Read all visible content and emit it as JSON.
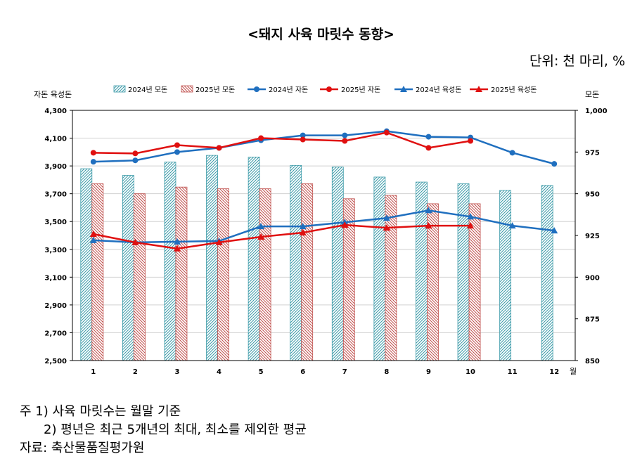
{
  "title": "<돼지 사육 마릿수 동향>",
  "unit": "단위: 천 마리, %",
  "notes": {
    "note1": "주  1)  사육  마릿수는  월말  기준",
    "note2": "2)  평년은  최근  5개년의  최대,  최소를  제외한  평균",
    "source": "자료:  축산물품질평가원"
  },
  "colors": {
    "y2024_bar": "#3a9aa8",
    "y2025_bar": "#c0504d",
    "y2024_line": "#1f6fbf",
    "y2025_line": "#e01010"
  },
  "chart_data": {
    "type": "bar",
    "categories": [
      "1",
      "2",
      "3",
      "4",
      "5",
      "6",
      "7",
      "8",
      "9",
      "10",
      "11",
      "12"
    ],
    "x_unit": "월",
    "left_axis": {
      "label": "자돈 육성돈",
      "range": [
        2500,
        4300
      ],
      "ticks": [
        "2,500",
        "2,700",
        "2,900",
        "3,100",
        "3,300",
        "3,500",
        "3,700",
        "3,900",
        "4,100",
        "4,300"
      ]
    },
    "right_axis": {
      "label": "모돈",
      "range": [
        850,
        1000
      ],
      "ticks": [
        "850",
        "875",
        "900",
        "925",
        "950",
        "975",
        "1,000"
      ]
    },
    "series": [
      {
        "name": "2024년 모돈",
        "kind": "bar",
        "axis": "right",
        "values": [
          965,
          961,
          969,
          973,
          972,
          967,
          966,
          960,
          957,
          956,
          952,
          955
        ]
      },
      {
        "name": "2025년 모돈",
        "kind": "bar",
        "axis": "right",
        "values": [
          956,
          950,
          954,
          953,
          953,
          956,
          947,
          949,
          944,
          944,
          null,
          null
        ]
      },
      {
        "name": "2024년 자돈",
        "kind": "line",
        "axis": "left",
        "values": [
          3930,
          3940,
          4000,
          4030,
          4085,
          4120,
          4120,
          4150,
          4110,
          4105,
          3995,
          3915
        ]
      },
      {
        "name": "2025년 자돈",
        "kind": "line",
        "axis": "left",
        "values": [
          3995,
          3990,
          4050,
          4030,
          4100,
          4090,
          4080,
          4140,
          4030,
          4080,
          null,
          null
        ]
      },
      {
        "name": "2024년 육성돈",
        "kind": "line",
        "axis": "left",
        "values": [
          3365,
          3350,
          3355,
          3360,
          3465,
          3465,
          3495,
          3525,
          3580,
          3535,
          3470,
          3435
        ]
      },
      {
        "name": "2025년 육성돈",
        "kind": "line",
        "axis": "left",
        "values": [
          3410,
          3350,
          3305,
          3350,
          3390,
          3420,
          3475,
          3455,
          3470,
          3470,
          null,
          null
        ]
      }
    ]
  }
}
